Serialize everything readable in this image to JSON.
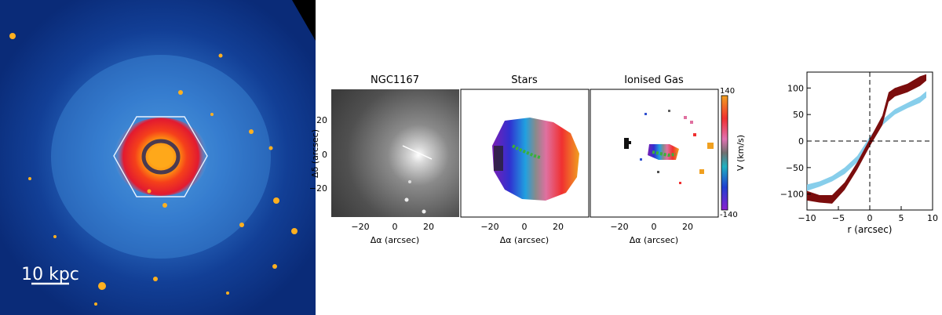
{
  "image_panel": {
    "scale_bar_label": "10 kpc"
  },
  "maps": {
    "panels": [
      {
        "title": "NGC1167"
      },
      {
        "title": "Stars"
      },
      {
        "title": "Ionised Gas"
      }
    ],
    "x_ticks": [
      "−20",
      "0",
      "20"
    ],
    "y_ticks": [
      "20",
      "0",
      "−20"
    ],
    "xlabel_sky": "Δα (arcsec)",
    "xlabel_kin": "Δα  (arcsec)",
    "ylabel": "Δδ (arcsec)",
    "colorbar": {
      "label": "V (km/s)",
      "max_label": "140",
      "min_label": "-140"
    }
  },
  "chart_data": {
    "type": "line",
    "title": "",
    "xlabel": "r (arcsec)",
    "ylabel": "",
    "xlim": [
      -10,
      10
    ],
    "ylim": [
      -130,
      130
    ],
    "x_ticks": [
      -10,
      -5,
      0,
      5,
      10
    ],
    "y_ticks": [
      -100,
      -50,
      0,
      50,
      100
    ],
    "x_tick_labels": [
      "−10",
      "−5",
      "0",
      "5",
      "10"
    ],
    "y_tick_labels": [
      "−100",
      "−50",
      "0",
      "50",
      "100"
    ],
    "reference_lines": {
      "x": 0,
      "y": 0,
      "style": "dashed"
    },
    "series": [
      {
        "color": "#87ceeb",
        "x": [
          -10,
          -8,
          -6,
          -4,
          -2,
          0,
          2,
          4,
          6,
          8,
          9
        ],
        "y_low": [
          -94,
          -86,
          -76,
          -62,
          -40,
          -4,
          30,
          50,
          62,
          72,
          82
        ],
        "y_high": [
          -82,
          -76,
          -66,
          -50,
          -28,
          8,
          40,
          60,
          72,
          84,
          94
        ]
      },
      {
        "color": "#7b0d0d",
        "x": [
          -10,
          -8,
          -6,
          -4,
          -2,
          0,
          2,
          3,
          4,
          6,
          8,
          9
        ],
        "y_low": [
          -112,
          -116,
          -118,
          -92,
          -54,
          -10,
          30,
          74,
          84,
          92,
          104,
          114
        ],
        "y_high": [
          -94,
          -102,
          -102,
          -78,
          -40,
          4,
          48,
          92,
          100,
          108,
          122,
          126
        ]
      }
    ]
  }
}
